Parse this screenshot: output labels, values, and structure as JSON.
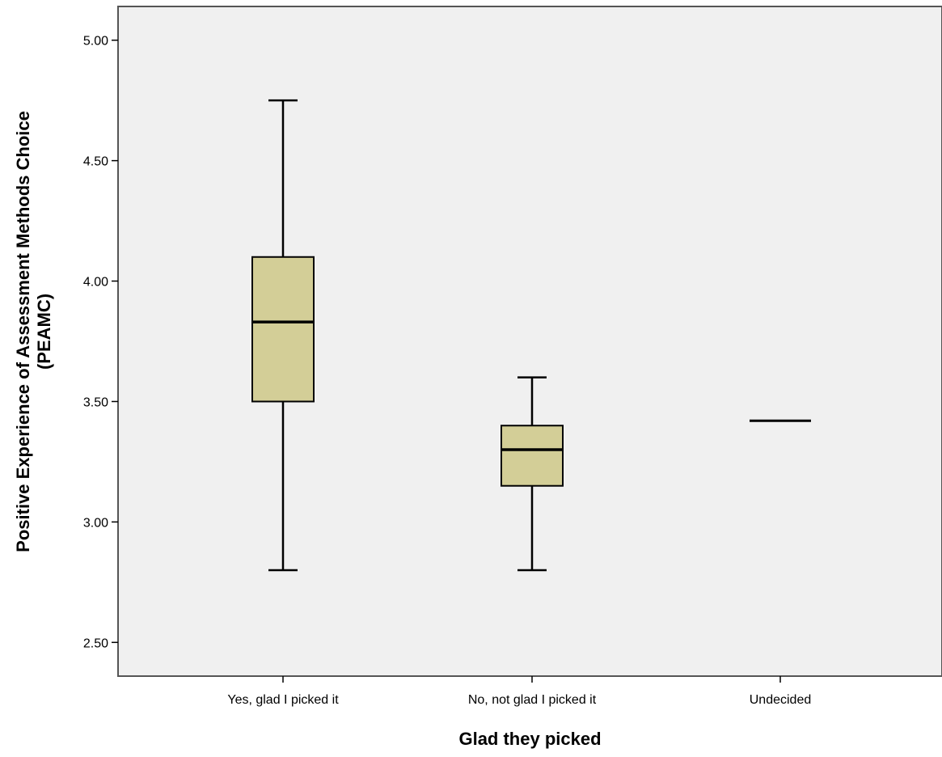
{
  "chart_data": {
    "type": "boxplot",
    "title": "",
    "xlabel": "Glad they picked",
    "ylabel_lines": [
      "Positive Experience of Assessment Methods Choice",
      "(PEAMC)"
    ],
    "ylim": [
      2.36,
      5.14
    ],
    "yticks": [
      2.5,
      3.0,
      3.5,
      4.0,
      4.5,
      5.0
    ],
    "ytick_labels": [
      "2.50",
      "3.00",
      "3.50",
      "4.00",
      "4.50",
      "5.00"
    ],
    "grid": false,
    "categories": [
      "Yes, glad I picked it",
      "No, not glad I picked it",
      "Undecided"
    ],
    "boxes": [
      {
        "category": "Yes, glad I picked it",
        "min": 2.8,
        "q1": 3.5,
        "median": 3.83,
        "q3": 4.1,
        "max": 4.75
      },
      {
        "category": "No, not glad I picked it",
        "min": 2.8,
        "q1": 3.15,
        "median": 3.3,
        "q3": 3.4,
        "max": 3.6
      },
      {
        "category": "Undecided",
        "min": 3.42,
        "q1": 3.42,
        "median": 3.42,
        "q3": 3.42,
        "max": 3.42
      }
    ],
    "colors": {
      "plot_background": "#f0f0f0",
      "box_fill": "#d3ce97",
      "stroke": "#000000",
      "axis": "#555555"
    }
  }
}
